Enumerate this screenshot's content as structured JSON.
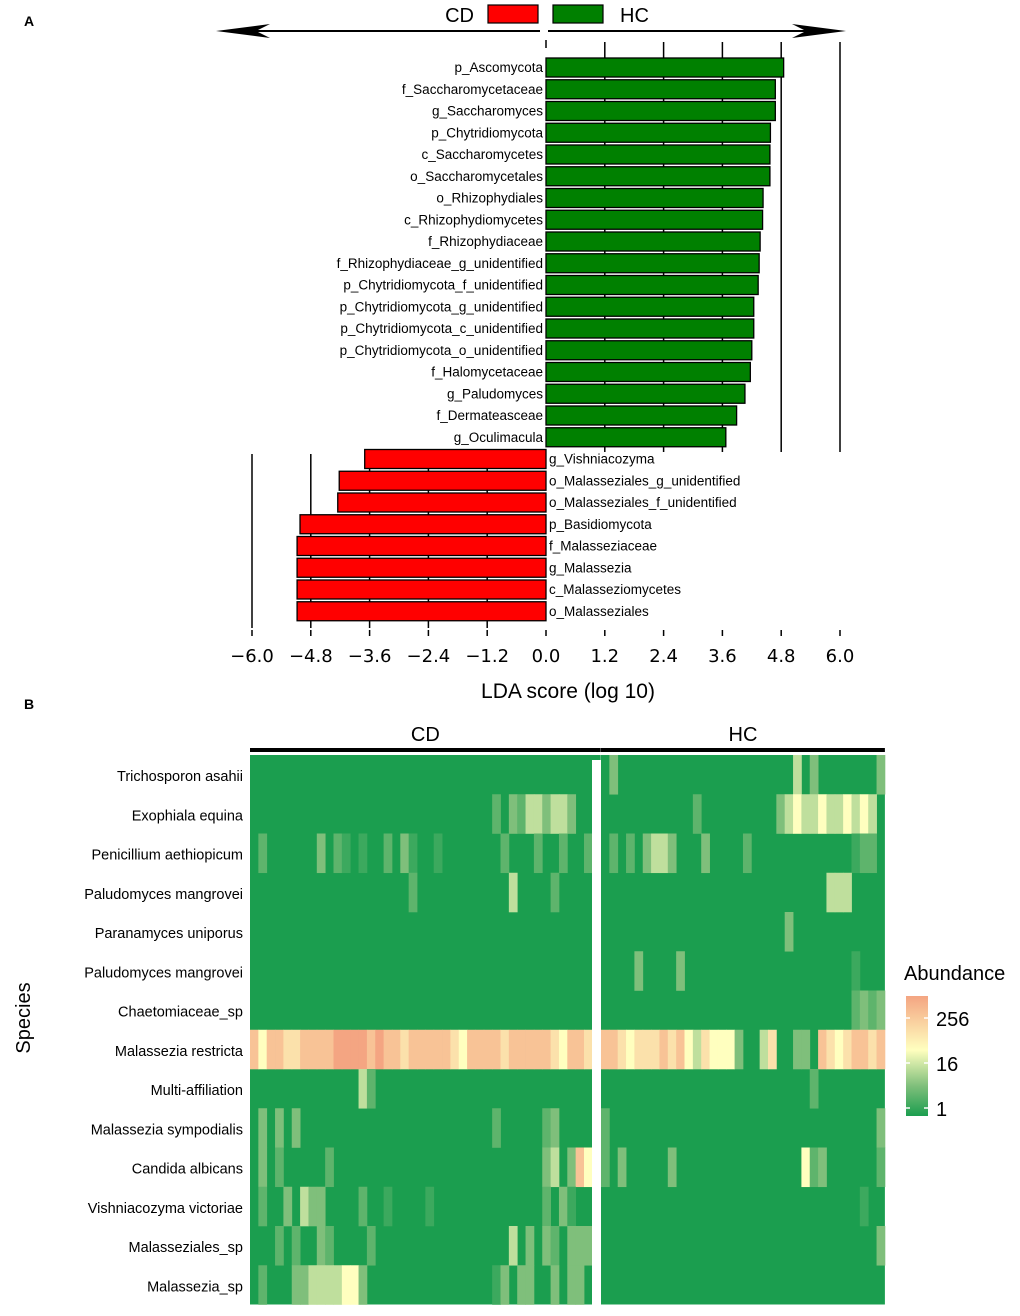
{
  "chart_data": [
    {
      "panel": "A",
      "type": "bar",
      "orientation": "horizontal",
      "title": "",
      "xlabel": "LDA score (log 10)",
      "xlim": [
        -6.0,
        6.0
      ],
      "xticks": [
        "−6.0",
        "−4.8",
        "−3.6",
        "−2.4",
        "−1.2",
        "0.0",
        "1.2",
        "2.4",
        "3.6",
        "4.8",
        "6.0"
      ],
      "xtick_values": [
        -6.0,
        -4.8,
        -3.6,
        -2.4,
        -1.2,
        0.0,
        1.2,
        2.4,
        3.6,
        4.8,
        6.0
      ],
      "gridlines": [
        -6.0,
        -4.8,
        -3.6,
        -2.4,
        -1.2,
        1.2,
        2.4,
        3.6,
        4.8,
        6.0
      ],
      "legend": [
        {
          "label": "CD",
          "color": "#ff0000"
        },
        {
          "label": "HC",
          "color": "#008000"
        }
      ],
      "series": [
        {
          "name": "HC",
          "color": "#008000",
          "items": [
            {
              "label": "p_Ascomycota",
              "value": 4.85
            },
            {
              "label": "f_Saccharomycetaceae",
              "value": 4.68
            },
            {
              "label": "g_Saccharomyces",
              "value": 4.68
            },
            {
              "label": "p_Chytridiomycota",
              "value": 4.58
            },
            {
              "label": "c_Saccharomycetes",
              "value": 4.57
            },
            {
              "label": "o_Saccharomycetales",
              "value": 4.57
            },
            {
              "label": "o_Rhizophydiales",
              "value": 4.43
            },
            {
              "label": "c_Rhizophydiomycetes",
              "value": 4.42
            },
            {
              "label": "f_Rhizophydiaceae",
              "value": 4.37
            },
            {
              "label": "f_Rhizophydiaceae_g_unidentified",
              "value": 4.35
            },
            {
              "label": "p_Chytridiomycota_f_unidentified",
              "value": 4.33
            },
            {
              "label": "p_Chytridiomycota_g_unidentified",
              "value": 4.24
            },
            {
              "label": "p_Chytridiomycota_c_unidentified",
              "value": 4.24
            },
            {
              "label": "p_Chytridiomycota_o_unidentified",
              "value": 4.2
            },
            {
              "label": "f_Halomycetaceae",
              "value": 4.17
            },
            {
              "label": "g_Paludomyces",
              "value": 4.06
            },
            {
              "label": "f_Dermateasceae",
              "value": 3.89
            },
            {
              "label": "g_Oculimacula",
              "value": 3.67
            }
          ]
        },
        {
          "name": "CD",
          "color": "#ff0000",
          "items": [
            {
              "label": "g_Vishniacozyma",
              "value": -3.7
            },
            {
              "label": "o_Malasseziales_g_unidentified",
              "value": -4.22
            },
            {
              "label": "o_Malasseziales_f_unidentified",
              "value": -4.25
            },
            {
              "label": "p_Basidiomycota",
              "value": -5.02
            },
            {
              "label": "f_Malasseziaceae",
              "value": -5.08
            },
            {
              "label": "g_Malassezia",
              "value": -5.08
            },
            {
              "label": "c_Malasseziomycetes",
              "value": -5.08
            },
            {
              "label": "o_Malasseziales",
              "value": -5.08
            }
          ]
        }
      ]
    },
    {
      "panel": "B",
      "type": "heatmap",
      "ylabel": "Species",
      "groups": [
        {
          "label": "CD",
          "columns": 42
        },
        {
          "label": "HC",
          "columns": 34
        }
      ],
      "rows": [
        "Trichosporon asahii",
        "Exophiala equina",
        "Penicillium aethiopicum",
        "Paludomyces mangrovei",
        "Paranamyces uniporus",
        "Paludomyces mangrovei",
        "Chaetomiaceae_sp",
        "Malassezia restricta",
        "Multi-affiliation",
        "Malassezia sympodialis",
        "Candida albicans",
        "Vishniacozyma victoriae",
        "Malasseziales_sp",
        "Malassezia_sp"
      ],
      "colorbar": {
        "title": "Abundance",
        "ticks": [
          "256",
          "16",
          "1"
        ],
        "colors": [
          "#f4a582",
          "#ffffbf",
          "#7fbf7b",
          "#1b9e4f"
        ]
      },
      "values_log2": {
        "CD": [
          "000000000000000000000000000000000000000000",
          "000000000000000000000000000002032443443000",
          "020000003021010020310010000000200020020020",
          "000000000000000000020000000000040000200000",
          "000000000000000000000000000000000000000000",
          "000000000000000000000000000000000000000000",
          "000000000000000000000000000000000000000000",
          "757766777788887877677777657777677777657767",
          "000000000000042000000000000000000000000000",
          "030303000000000000000000000002000002300000",
          "030200000200000000000000000000000003403750",
          "020030433000020010000100000000000002031000",
          "000202003200002000000000000000040303203330",
          "020003344445530000000000000001303300303300"
        ],
        "HC": [
          "0300000000000000000000040300000003",
          "0000000000020000000003454454454540",
          "0202034430003000020000000000001220",
          "0000000000000000000000000004440000",
          "0000000000000000000000300000000000",
          "0000300003000000000000000000001000",
          "0000000000000000000000000000002323",
          "7765666767546555300460033076567767",
          "0000000000000000000000000200000000",
          "2000000000000000000000000000000003",
          "2030000030000000000000005230000002",
          "0000000000000000000000000000000100",
          "0000000000000000000000000000000003",
          "0000000000000000000000000000000000"
        ]
      }
    }
  ],
  "panel_labels": {
    "a": "A",
    "b": "B"
  }
}
